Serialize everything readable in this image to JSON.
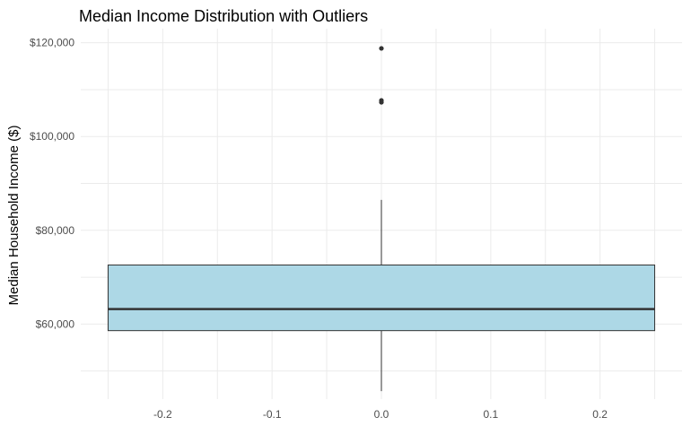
{
  "chart_data": {
    "type": "boxplot",
    "title": "Median Income Distribution with Outliers",
    "xlabel": "",
    "ylabel": "Median Household Income ($)",
    "x_ticks": [
      "-0.2",
      "-0.1",
      "0.0",
      "0.1",
      "0.2"
    ],
    "x_tick_values": [
      -0.2,
      -0.1,
      0.0,
      0.1,
      0.2
    ],
    "xlim": [
      -0.275,
      0.275
    ],
    "y_ticks": [
      "$60,000",
      "$80,000",
      "$100,000",
      "$120,000"
    ],
    "y_tick_values": [
      60000,
      80000,
      100000,
      120000
    ],
    "ylim": [
      44000,
      123000
    ],
    "grid": true,
    "box": {
      "x_center": 0.0,
      "x_min": -0.25,
      "x_max": 0.25,
      "min": 45700,
      "q1": 58600,
      "median": 63200,
      "q3": 72600,
      "max": 86500,
      "outliers": [
        107300,
        107700,
        118800
      ]
    },
    "colors": {
      "box_fill": "#add8e6",
      "box_stroke": "#333333",
      "grid": "#ebebeb",
      "outlier": "#333333"
    }
  }
}
